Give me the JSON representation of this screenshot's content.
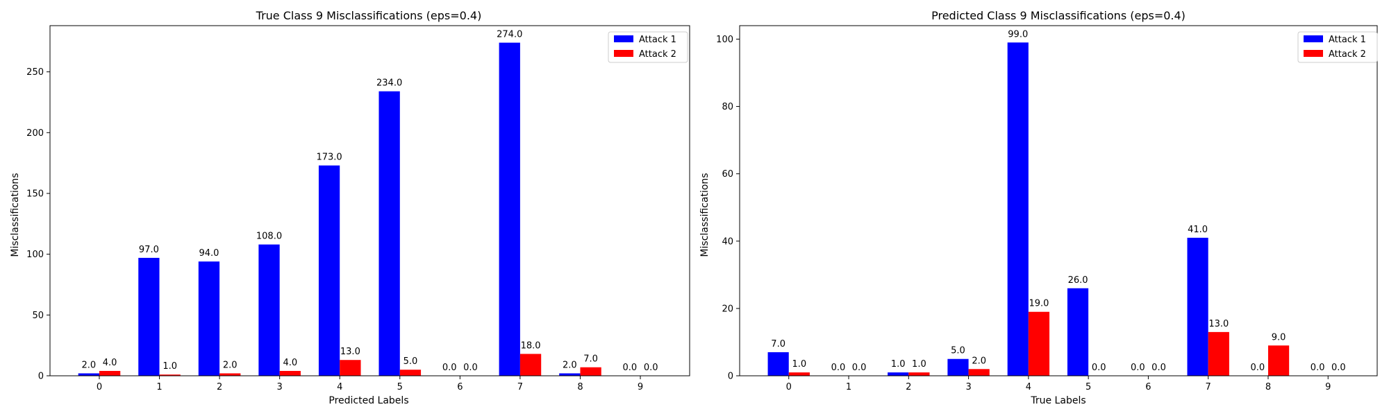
{
  "colors": {
    "attack1": "#0000ff",
    "attack2": "#ff0000"
  },
  "chart_data": [
    {
      "type": "bar",
      "title": "True Class 9 Misclassifications (eps=0.4)",
      "xlabel": "Predicted Labels",
      "ylabel": "Misclassifications",
      "categories": [
        "0",
        "1",
        "2",
        "3",
        "4",
        "5",
        "6",
        "7",
        "8",
        "9"
      ],
      "ylim": [
        0,
        288
      ],
      "yticks": [
        0,
        50,
        100,
        150,
        200,
        250
      ],
      "series": [
        {
          "name": "Attack 1",
          "values": [
            2,
            97,
            94,
            108,
            173,
            234,
            0,
            274,
            2,
            0
          ],
          "labels": [
            "2.0",
            "97.0",
            "94.0",
            "108.0",
            "173.0",
            "234.0",
            "0.0",
            "274.0",
            "2.0",
            "0.0"
          ]
        },
        {
          "name": "Attack 2",
          "values": [
            4,
            1,
            2,
            4,
            13,
            5,
            0,
            18,
            7,
            0
          ],
          "labels": [
            "4.0",
            "1.0",
            "2.0",
            "4.0",
            "13.0",
            "5.0",
            "0.0",
            "18.0",
            "7.0",
            "0.0"
          ]
        }
      ],
      "legend": "top-right",
      "grid": false
    },
    {
      "type": "bar",
      "title": "Predicted Class 9 Misclassifications (eps=0.4)",
      "xlabel": "True Labels",
      "ylabel": "Misclassifications",
      "categories": [
        "0",
        "1",
        "2",
        "3",
        "4",
        "5",
        "6",
        "7",
        "8",
        "9"
      ],
      "ylim": [
        0,
        104
      ],
      "yticks": [
        0,
        20,
        40,
        60,
        80,
        100
      ],
      "series": [
        {
          "name": "Attack 1",
          "values": [
            7,
            0,
            1,
            5,
            99,
            26,
            0,
            41,
            0,
            0
          ],
          "labels": [
            "7.0",
            "0.0",
            "1.0",
            "5.0",
            "99.0",
            "26.0",
            "0.0",
            "41.0",
            "0.0",
            "0.0"
          ]
        },
        {
          "name": "Attack 2",
          "values": [
            1,
            0,
            1,
            2,
            19,
            0,
            0,
            13,
            9,
            0
          ],
          "labels": [
            "1.0",
            "0.0",
            "1.0",
            "2.0",
            "19.0",
            "0.0",
            "0.0",
            "13.0",
            "9.0",
            "0.0"
          ]
        }
      ],
      "legend": "top-right",
      "grid": false
    }
  ]
}
